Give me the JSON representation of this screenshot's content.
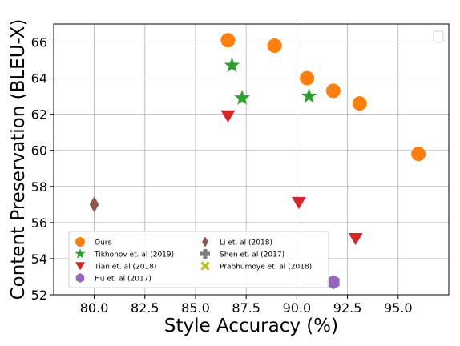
{
  "chart_data": {
    "type": "scatter",
    "title": "",
    "xlabel": "Style Accuracy (%)",
    "ylabel": "Content Preservation (BLEU-X)",
    "xlim": [
      78,
      97.5
    ],
    "ylim": [
      52,
      67
    ],
    "xticks": [
      "80.0",
      "82.5",
      "85.0",
      "87.5",
      "90.0",
      "92.5",
      "95.0"
    ],
    "yticks": [
      "52",
      "54",
      "56",
      "58",
      "60",
      "62",
      "64",
      "66"
    ],
    "grid": true,
    "legend_placement": "lower-left",
    "series": [
      {
        "name": "Ours",
        "marker": "circle",
        "color": "#ff7f0e",
        "points": [
          [
            86.6,
            66.1
          ],
          [
            88.9,
            65.8
          ],
          [
            90.5,
            64.0
          ],
          [
            91.8,
            63.3
          ],
          [
            93.1,
            62.6
          ],
          [
            96.0,
            59.8
          ]
        ]
      },
      {
        "name": "Tikhonov et. al (2019)",
        "marker": "star",
        "color": "#2ca02c",
        "points": [
          [
            86.8,
            64.7
          ],
          [
            87.3,
            62.9
          ],
          [
            90.6,
            63.0
          ]
        ]
      },
      {
        "name": "Tian et. al (2018)",
        "marker": "triangle-down",
        "color": "#d62728",
        "points": [
          [
            86.6,
            61.9
          ],
          [
            90.1,
            57.1
          ],
          [
            92.9,
            55.1
          ]
        ]
      },
      {
        "name": "Hu et. al (2017)",
        "marker": "hexagon",
        "color": "#9467bd",
        "points": [
          [
            91.8,
            52.7
          ]
        ]
      },
      {
        "name": "Li et. al (2018)",
        "marker": "thin-diamond",
        "color": "#8c564b",
        "points": [
          [
            80.0,
            57.0
          ]
        ]
      },
      {
        "name": "Shen et. al (2017)",
        "marker": "plus",
        "color": "#7f7f7f",
        "points": []
      },
      {
        "name": "Prabhumoye et. al (2018)",
        "marker": "x",
        "color": "#bcbd22",
        "points": []
      }
    ]
  }
}
